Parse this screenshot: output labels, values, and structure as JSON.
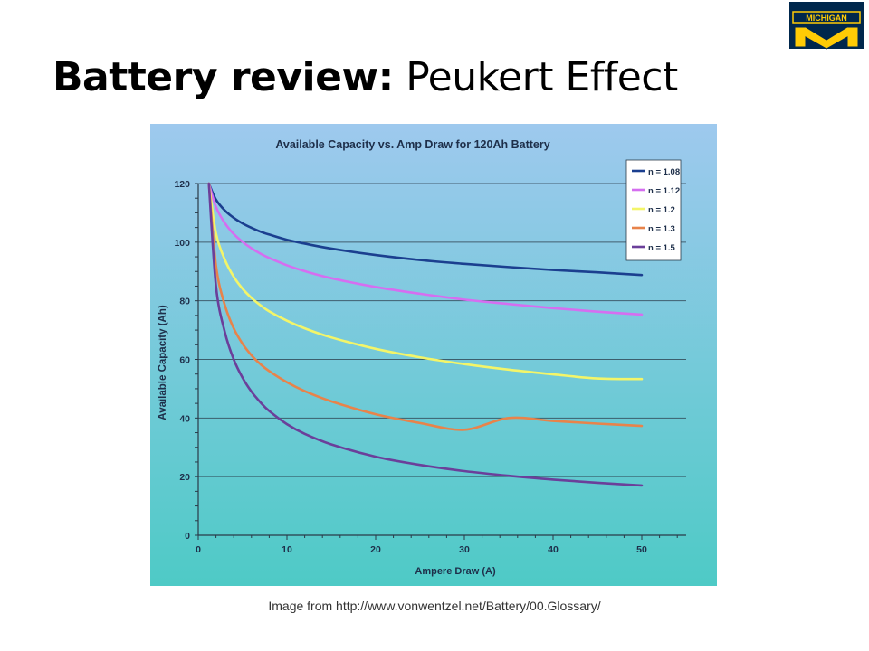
{
  "slide": {
    "title_bold": "Battery review:",
    "title_rest": " Peukert Effect",
    "caption": "Image from http://www.vonwentzel.net/Battery/00.Glossary/"
  },
  "logo": {
    "text": "MICHIGAN",
    "letter": "M",
    "colors": {
      "blue": "#00274c",
      "maize": "#ffcb05"
    }
  },
  "chart_data": {
    "type": "line",
    "title": "Available Capacity vs. Amp Draw for 120Ah Battery",
    "xlabel": "Ampere Draw (A)",
    "ylabel": "Available Capacity (Ah)",
    "xlim": [
      0,
      55
    ],
    "ylim": [
      0,
      120
    ],
    "xticks": [
      0,
      10,
      20,
      30,
      40,
      50
    ],
    "yticks": [
      0,
      20,
      40,
      60,
      80,
      100,
      120
    ],
    "grid": "horizontal",
    "legend_position": "top-right",
    "background": [
      "#9ec9ee",
      "#4ecac6"
    ],
    "x": [
      1.2,
      2,
      3,
      4,
      5,
      6,
      7,
      8,
      10,
      12,
      15,
      20,
      25,
      30,
      35,
      40,
      45,
      50
    ],
    "series": [
      {
        "name": "n = 1.08",
        "color": "#1b3f8f",
        "values": [
          120,
          114.5,
          110.8,
          108.3,
          106.4,
          104.9,
          103.6,
          102.6,
          100.8,
          99.5,
          97.8,
          95.6,
          93.9,
          92.6,
          91.5,
          90.5,
          89.7,
          88.8
        ]
      },
      {
        "name": "n = 1.12",
        "color": "#d56ef0",
        "values": [
          120,
          112,
          106.5,
          102.8,
          100.1,
          97.9,
          96.1,
          94.6,
          92.1,
          90.1,
          87.7,
          84.7,
          82.4,
          80.4,
          78.9,
          77.5,
          76.3,
          75.3
        ]
      },
      {
        "name": "n = 1.2",
        "color": "#f3f569",
        "values": [
          120,
          103,
          94,
          88.2,
          84.1,
          81,
          78.5,
          76.4,
          73.2,
          70.6,
          67.5,
          63.6,
          60.7,
          58.4,
          56.5,
          54.9,
          53.5,
          53.3
        ]
      },
      {
        "name": "n = 1.3",
        "color": "#e8834a",
        "values": [
          120,
          92,
          78.5,
          70.6,
          65.3,
          61.4,
          58.4,
          56,
          52.2,
          49.2,
          45.7,
          41.3,
          38.3,
          36,
          40,
          39,
          38.1,
          37.3
        ]
      },
      {
        "name": "n = 1.5",
        "color": "#6b3f9a",
        "values": [
          120,
          85,
          69.3,
          60,
          53.7,
          49,
          45.4,
          42.4,
          37.9,
          34.6,
          31,
          26.8,
          24,
          21.9,
          20.3,
          19,
          17.9,
          17
        ]
      }
    ]
  }
}
